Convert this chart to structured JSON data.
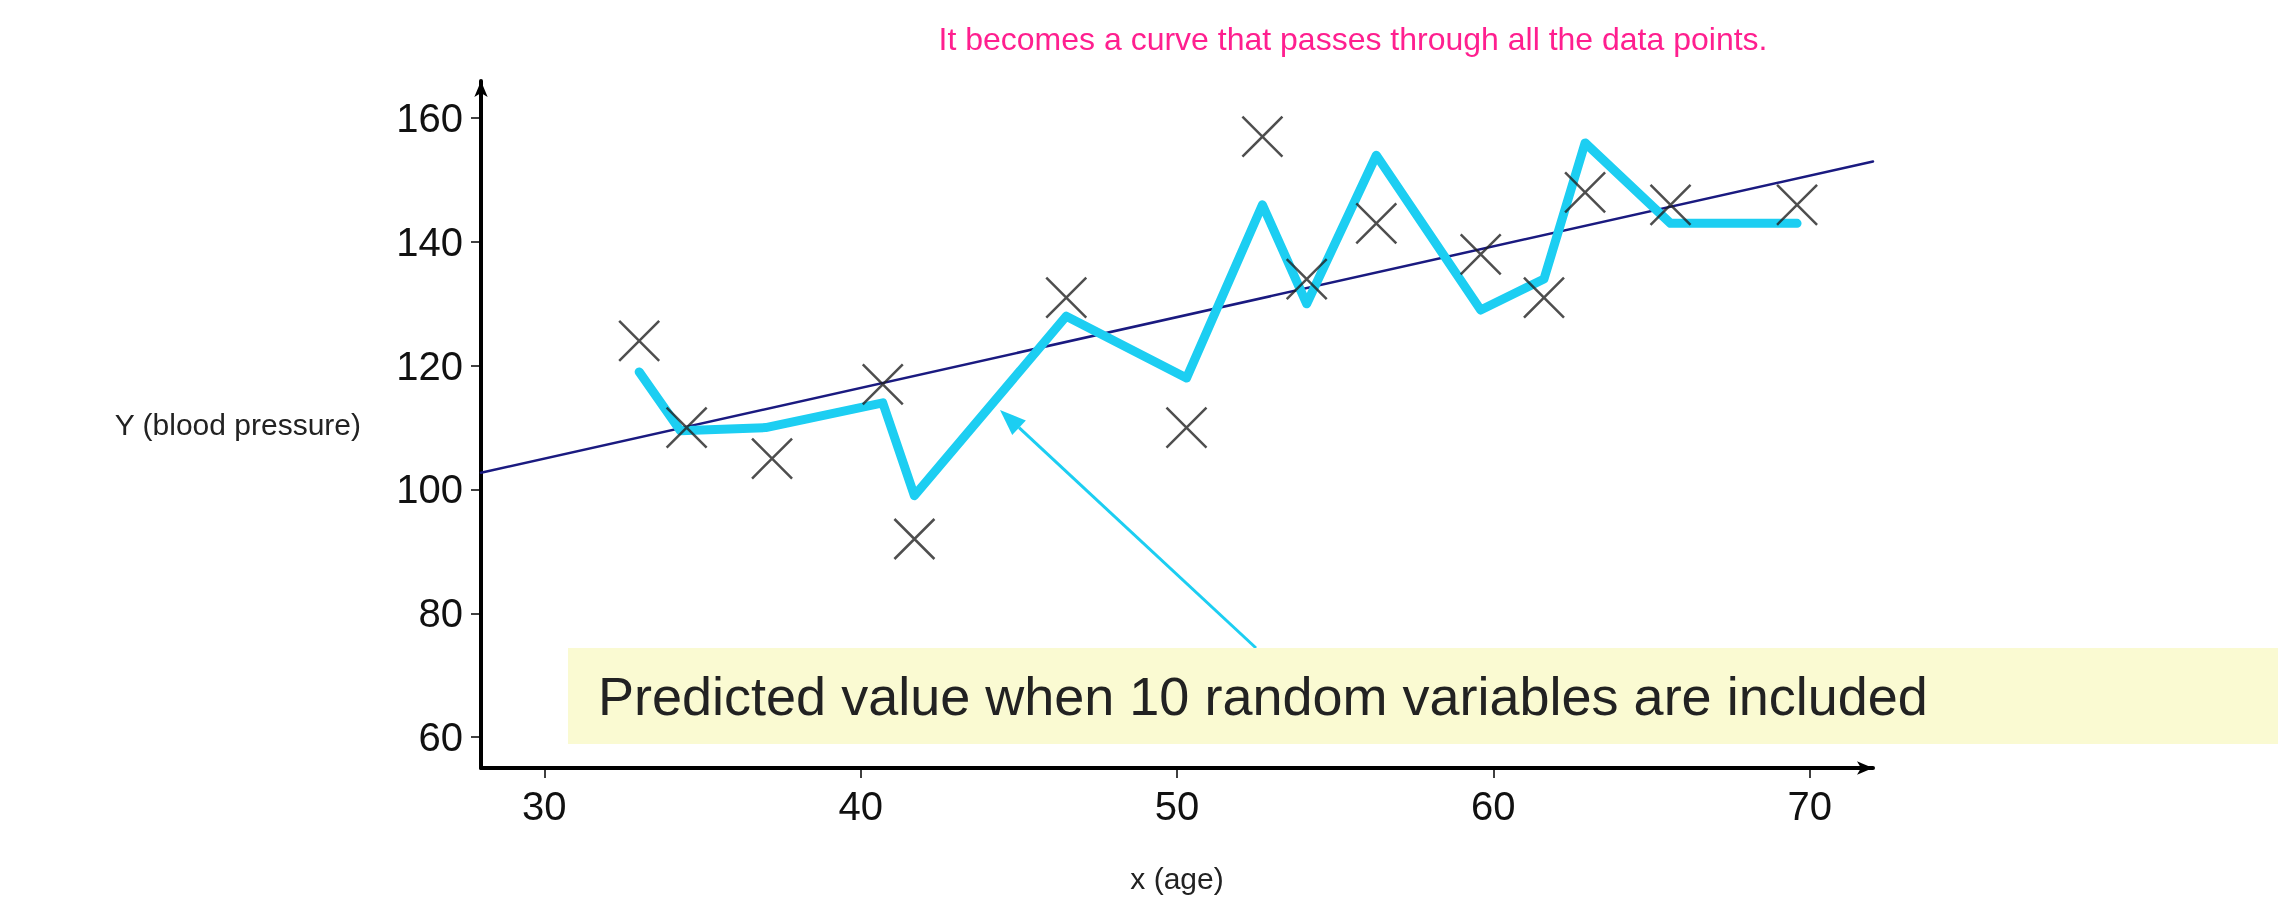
{
  "chart_data": {
    "type": "scatter",
    "title": "It becomes a curve that passes through all the data points.",
    "xlabel": "x (age)",
    "ylabel": "Y (blood pressure)",
    "xlim": [
      28,
      72
    ],
    "xticks": [
      30,
      40,
      50,
      60,
      70
    ],
    "ylim": [
      55,
      166
    ],
    "yticks": [
      60,
      80,
      100,
      120,
      140,
      160
    ],
    "grid": false,
    "series": [
      {
        "marker": "cross",
        "color": "#222222",
        "x": [
          33.0,
          34.5,
          37.2,
          40.7,
          41.7,
          46.5,
          50.3,
          52.7,
          54.1,
          56.3,
          59.6,
          61.6,
          62.9,
          65.6,
          69.6
        ],
        "values": [
          124,
          110,
          105,
          117,
          92,
          131,
          110,
          157,
          134,
          143,
          138,
          131,
          148,
          146,
          146
        ]
      },
      {
        "type": "line",
        "marker": "none",
        "color": "#1ccef2",
        "x": [
          33.0,
          34.3,
          37.0,
          40.7,
          41.7,
          46.5,
          50.3,
          52.7,
          54.1,
          56.3,
          59.6,
          61.6,
          62.9,
          65.6,
          69.6
        ],
        "values": [
          119,
          109.5,
          110,
          114,
          99,
          128,
          118,
          146,
          130,
          154,
          129,
          134,
          156,
          143,
          143
        ]
      },
      {
        "type": "line",
        "marker": "none",
        "color": "#1a1a80",
        "x": [
          28,
          72
        ],
        "values": [
          102.7,
          153
        ]
      }
    ],
    "annotations": [
      "Predicted value when 10 random variables are included"
    ]
  }
}
